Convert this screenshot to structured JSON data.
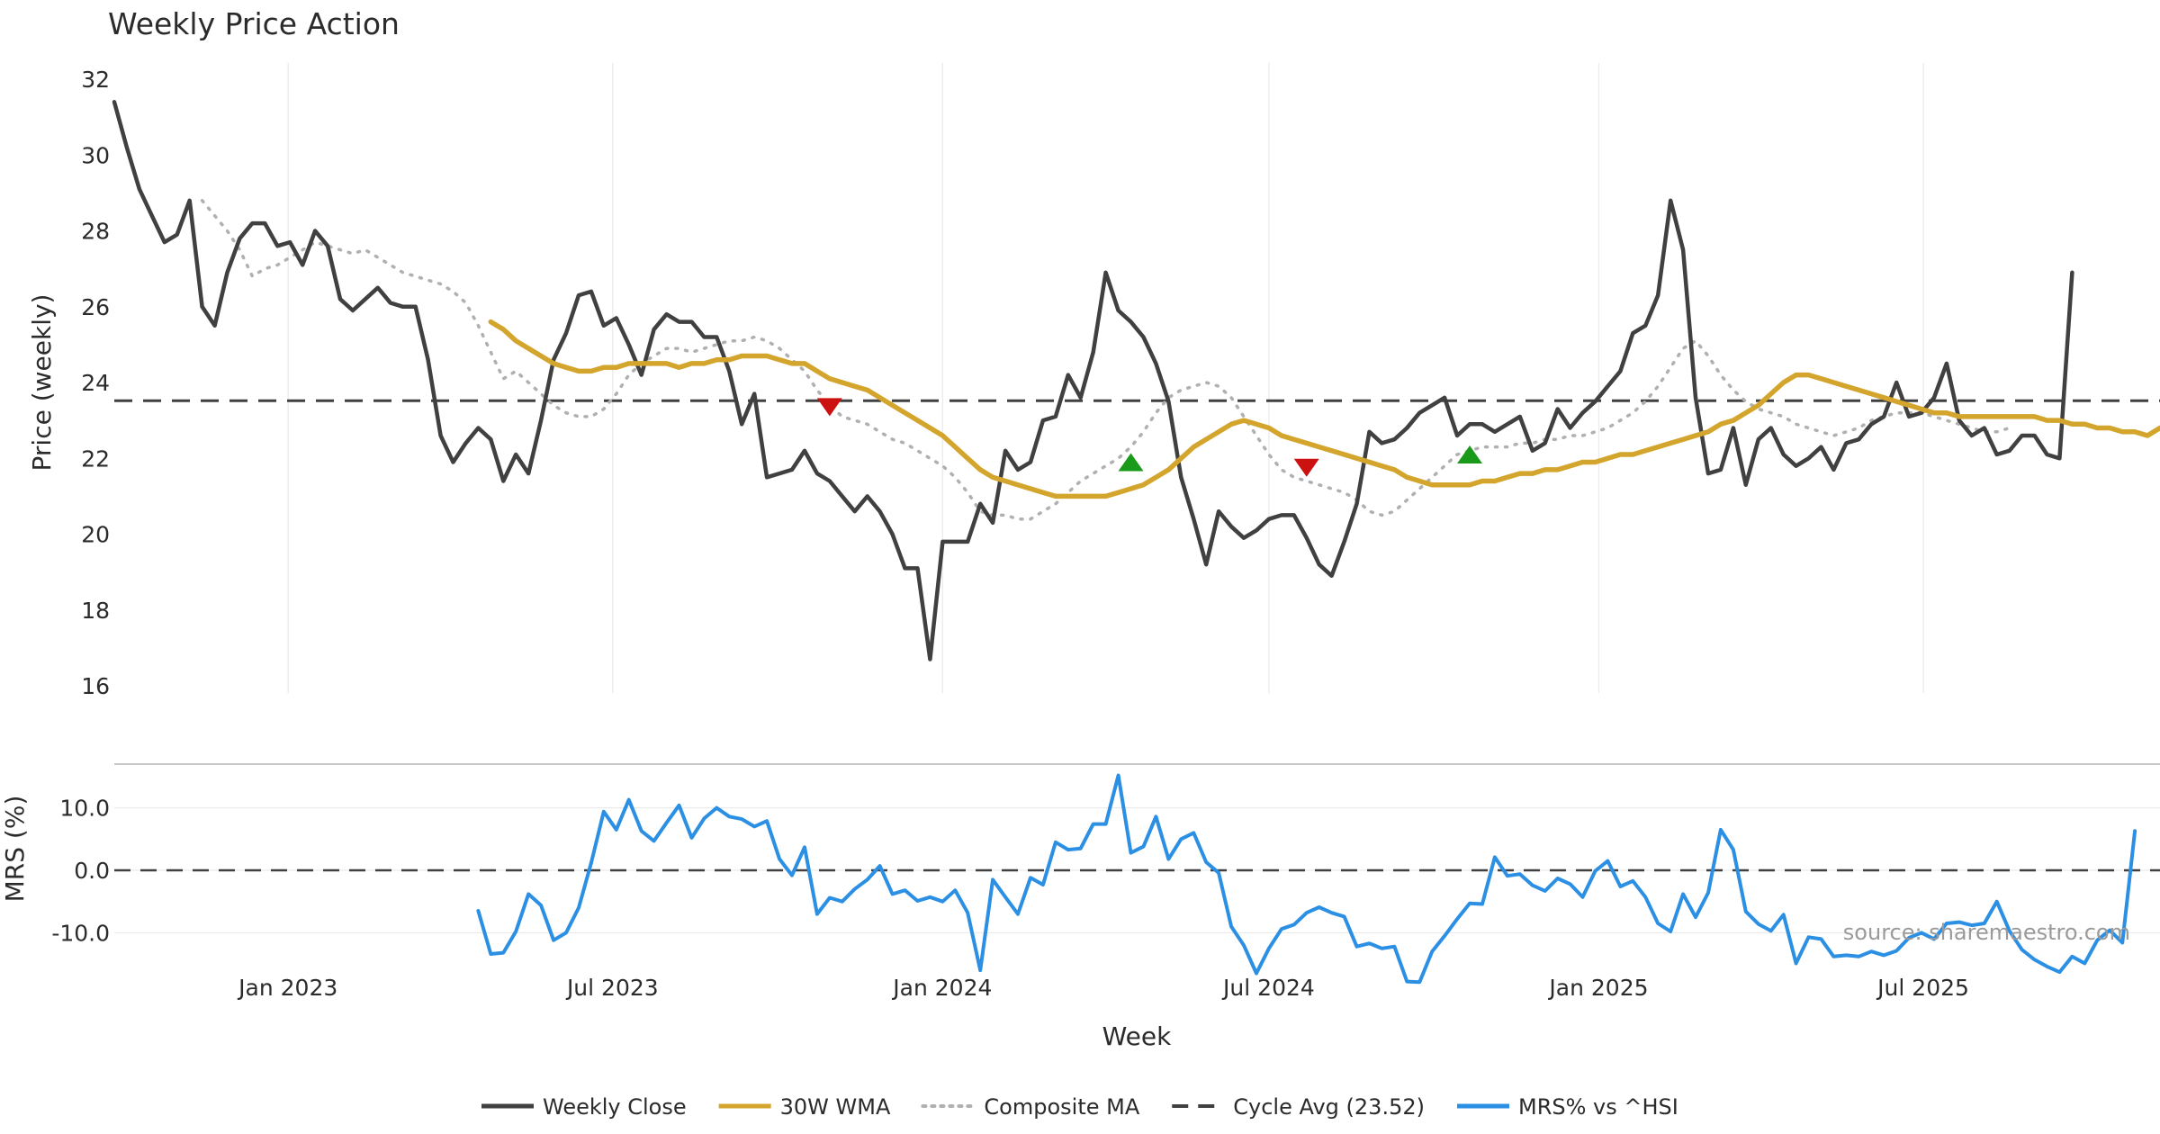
{
  "chart_data": [
    {
      "type": "line",
      "title": "Weekly Price Action",
      "xlabel": "",
      "ylabel": "Price (weekly)",
      "ylim": [
        16,
        32
      ],
      "yticks": [
        "16",
        "18",
        "20",
        "22",
        "24",
        "26",
        "28",
        "30",
        "32"
      ],
      "x_start": "2022-09-26",
      "x_end": "2025-11-10",
      "x_step_days": 7,
      "grid": "vertical",
      "series": [
        {
          "name": "Weekly Close",
          "color": "#404040",
          "start": "2022-09-26",
          "values": [
            31.4,
            30.2,
            29.1,
            28.4,
            27.7,
            27.9,
            28.8,
            26.0,
            25.5,
            26.9,
            27.8,
            28.2,
            28.2,
            27.6,
            27.7,
            27.1,
            28.0,
            27.6,
            26.2,
            25.9,
            26.2,
            26.5,
            26.1,
            26.0,
            26.0,
            24.6,
            22.6,
            21.9,
            22.4,
            22.8,
            22.5,
            21.4,
            22.1,
            21.6,
            23.0,
            24.6,
            25.3,
            26.3,
            26.4,
            25.5,
            25.7,
            25.0,
            24.2,
            25.4,
            25.8,
            25.6,
            25.6,
            25.2,
            25.2,
            24.3,
            22.9,
            23.7,
            21.5,
            21.6,
            21.7,
            22.2,
            21.6,
            21.4,
            21.0,
            20.6,
            21.0,
            20.6,
            20.0,
            19.1,
            19.1,
            16.7,
            19.8,
            19.8,
            19.8,
            20.8,
            20.3,
            22.2,
            21.7,
            21.9,
            23.0,
            23.1,
            24.2,
            23.6,
            24.8,
            26.9,
            25.9,
            25.6,
            25.2,
            24.5,
            23.5,
            21.5,
            20.4,
            19.2,
            20.6,
            20.2,
            19.9,
            20.1,
            20.4,
            20.5,
            20.5,
            19.9,
            19.2,
            18.9,
            19.8,
            20.8,
            22.7,
            22.4,
            22.5,
            22.8,
            23.2,
            23.4,
            23.6,
            22.6,
            22.9,
            22.9,
            22.7,
            22.9,
            23.1,
            22.2,
            22.4,
            23.3,
            22.8,
            23.2,
            23.5,
            23.9,
            24.3,
            25.3,
            25.5,
            26.3,
            28.8,
            27.5,
            23.6,
            21.6,
            21.7,
            22.8,
            21.3,
            22.5,
            22.8,
            22.1,
            21.8,
            22.0,
            22.3,
            21.7,
            22.4,
            22.5,
            22.9,
            23.1,
            24.0,
            23.1,
            23.2,
            23.6,
            24.5,
            23.0,
            22.6,
            22.8,
            22.1,
            22.2,
            22.6,
            22.6,
            22.1,
            22.0,
            26.9
          ]
        },
        {
          "name": "30W WMA",
          "color": "#d4a52c",
          "start": "2023-04-24",
          "values": [
            25.6,
            25.4,
            25.1,
            24.9,
            24.7,
            24.5,
            24.4,
            24.3,
            24.3,
            24.4,
            24.4,
            24.5,
            24.5,
            24.5,
            24.5,
            24.4,
            24.5,
            24.5,
            24.6,
            24.6,
            24.7,
            24.7,
            24.7,
            24.6,
            24.5,
            24.5,
            24.3,
            24.1,
            24.0,
            23.9,
            23.8,
            23.6,
            23.4,
            23.2,
            23.0,
            22.8,
            22.6,
            22.3,
            22.0,
            21.7,
            21.5,
            21.4,
            21.3,
            21.2,
            21.1,
            21.0,
            21.0,
            21.0,
            21.0,
            21.0,
            21.1,
            21.2,
            21.3,
            21.5,
            21.7,
            22.0,
            22.3,
            22.5,
            22.7,
            22.9,
            23.0,
            22.9,
            22.8,
            22.6,
            22.5,
            22.4,
            22.3,
            22.2,
            22.1,
            22.0,
            21.9,
            21.8,
            21.7,
            21.5,
            21.4,
            21.3,
            21.3,
            21.3,
            21.3,
            21.4,
            21.4,
            21.5,
            21.6,
            21.6,
            21.7,
            21.7,
            21.8,
            21.9,
            21.9,
            22.0,
            22.1,
            22.1,
            22.2,
            22.3,
            22.4,
            22.5,
            22.6,
            22.7,
            22.9,
            23.0,
            23.2,
            23.4,
            23.7,
            24.0,
            24.2,
            24.2,
            24.1,
            24.0,
            23.9,
            23.8,
            23.7,
            23.6,
            23.5,
            23.4,
            23.3,
            23.2,
            23.2,
            23.1,
            23.1,
            23.1,
            23.1,
            23.1,
            23.1,
            23.1,
            23.0,
            23.0,
            22.9,
            22.9,
            22.8,
            22.8,
            22.7,
            22.7,
            22.6,
            22.8
          ]
        },
        {
          "name": "Composite MA",
          "color": "#b0b0b0",
          "start": "2022-11-14",
          "values": [
            28.8,
            28.4,
            28.0,
            27.5,
            26.8,
            27.0,
            27.1,
            27.3,
            27.5,
            27.7,
            27.6,
            27.5,
            27.4,
            27.5,
            27.3,
            27.1,
            26.9,
            26.8,
            26.7,
            26.6,
            26.4,
            26.1,
            25.5,
            24.8,
            24.1,
            24.3,
            24.0,
            23.7,
            23.4,
            23.2,
            23.1,
            23.1,
            23.3,
            23.7,
            24.2,
            24.5,
            24.7,
            24.9,
            24.9,
            24.8,
            24.9,
            25.0,
            25.1,
            25.1,
            25.2,
            25.1,
            24.9,
            24.6,
            24.3,
            23.8,
            23.4,
            23.1,
            23.0,
            22.9,
            22.7,
            22.5,
            22.4,
            22.2,
            22.0,
            21.8,
            21.5,
            21.1,
            20.6,
            20.5,
            20.5,
            20.4,
            20.4,
            20.6,
            20.8,
            21.1,
            21.4,
            21.6,
            21.8,
            22.0,
            22.3,
            22.7,
            23.2,
            23.6,
            23.8,
            23.9,
            24.0,
            23.9,
            23.6,
            23.1,
            22.6,
            22.1,
            21.7,
            21.5,
            21.4,
            21.3,
            21.2,
            21.1,
            20.9,
            20.6,
            20.5,
            20.6,
            20.9,
            21.2,
            21.5,
            21.8,
            22.1,
            22.2,
            22.3,
            22.3,
            22.3,
            22.4,
            22.4,
            22.5,
            22.5,
            22.6,
            22.6,
            22.7,
            22.8,
            23.0,
            23.2,
            23.5,
            23.9,
            24.4,
            24.9,
            25.1,
            24.7,
            24.2,
            23.8,
            23.5,
            23.3,
            23.2,
            23.1,
            22.9,
            22.8,
            22.7,
            22.6,
            22.7,
            22.8,
            23.0,
            23.1,
            23.2,
            23.2,
            23.2,
            23.1,
            23.0,
            22.9,
            22.8,
            22.7,
            22.7,
            22.8
          ]
        },
        {
          "name": "Cycle Avg (23.52)",
          "color": "#404040",
          "constant": 23.52
        }
      ],
      "markers": [
        {
          "kind": "sell",
          "color": "#cc1111",
          "x": "2023-10-30",
          "y": 23.35
        },
        {
          "kind": "buy",
          "color": "#1a9a1a",
          "x": "2024-04-15",
          "y": 21.9
        },
        {
          "kind": "sell",
          "color": "#cc1111",
          "x": "2024-07-22",
          "y": 21.75
        },
        {
          "kind": "buy",
          "color": "#1a9a1a",
          "x": "2024-10-21",
          "y": 22.1
        }
      ]
    },
    {
      "type": "line",
      "title": "",
      "xlabel": "Week",
      "ylabel": "MRS (%)",
      "ylim": [
        -17.0,
        17.0
      ],
      "yticks": [
        "-10.0",
        "0.0",
        "10.0"
      ],
      "xticks": [
        "Jan 2023",
        "Jul 2023",
        "Jan 2024",
        "Jul 2024",
        "Jan 2025",
        "Jul 2025"
      ],
      "xtick_dates": [
        "2023-01-01",
        "2023-07-01",
        "2024-01-01",
        "2024-07-01",
        "2025-01-01",
        "2025-07-01"
      ],
      "series": [
        {
          "name": "MRS% vs ^HSI",
          "color": "#2b8fe4",
          "start": "2023-04-17",
          "values": [
            -6.5,
            -13.4,
            -13.2,
            -9.8,
            -3.8,
            -5.6,
            -11.2,
            -10.0,
            -6.0,
            1.2,
            9.4,
            6.5,
            11.3,
            6.3,
            4.7,
            7.6,
            10.4,
            5.2,
            8.3,
            10.0,
            8.6,
            8.2,
            7.0,
            7.9,
            1.8,
            -0.8,
            3.7,
            -7.0,
            -4.4,
            -5.0,
            -3.0,
            -1.5,
            0.7,
            -3.8,
            -3.2,
            -4.9,
            -4.3,
            -5.0,
            -3.2,
            -6.8,
            -16.0,
            -1.5,
            -4.3,
            -7.0,
            -1.2,
            -2.3,
            4.5,
            3.3,
            3.5,
            7.4,
            7.4,
            15.2,
            2.8,
            3.8,
            8.6,
            1.8,
            5.0,
            6.0,
            1.3,
            -0.4,
            -9.0,
            -12.0,
            -16.5,
            -12.5,
            -9.4,
            -8.7,
            -6.8,
            -5.9,
            -6.8,
            -7.4,
            -12.2,
            -11.7,
            -12.5,
            -12.2,
            -17.8,
            -17.9,
            -13.0,
            -10.5,
            -7.8,
            -5.3,
            -5.4,
            2.1,
            -0.9,
            -0.6,
            -2.4,
            -3.3,
            -1.3,
            -2.2,
            -4.3,
            -0.1,
            1.5,
            -2.6,
            -1.7,
            -4.3,
            -8.5,
            -9.8,
            -3.8,
            -7.5,
            -3.6,
            6.5,
            3.3,
            -6.6,
            -8.6,
            -9.7,
            -7.1,
            -14.9,
            -10.7,
            -11.0,
            -13.8,
            -13.6,
            -13.8,
            -13.0,
            -13.6,
            -12.9,
            -10.8,
            -10.0,
            -11.0,
            -8.5,
            -8.3,
            -8.8,
            -8.5,
            -5.0,
            -9.7,
            -12.7,
            -14.3,
            -15.4,
            -16.3,
            -13.8,
            -14.9,
            -11.2,
            -9.6,
            -11.6,
            6.3
          ]
        },
        {
          "name": "zero-line",
          "color": "#404040",
          "constant": 0.0
        }
      ]
    }
  ],
  "legend": [
    {
      "label": "Weekly Close",
      "color": "#404040",
      "style": "solid"
    },
    {
      "label": "30W WMA",
      "color": "#d4a52c",
      "style": "solid"
    },
    {
      "label": "Composite MA",
      "color": "#b0b0b0",
      "style": "dotted"
    },
    {
      "label": "Cycle Avg (23.52)",
      "color": "#404040",
      "style": "dashed"
    },
    {
      "label": "MRS% vs ^HSI",
      "color": "#2b8fe4",
      "style": "solid"
    }
  ],
  "source": "source: sharemaestro.com"
}
